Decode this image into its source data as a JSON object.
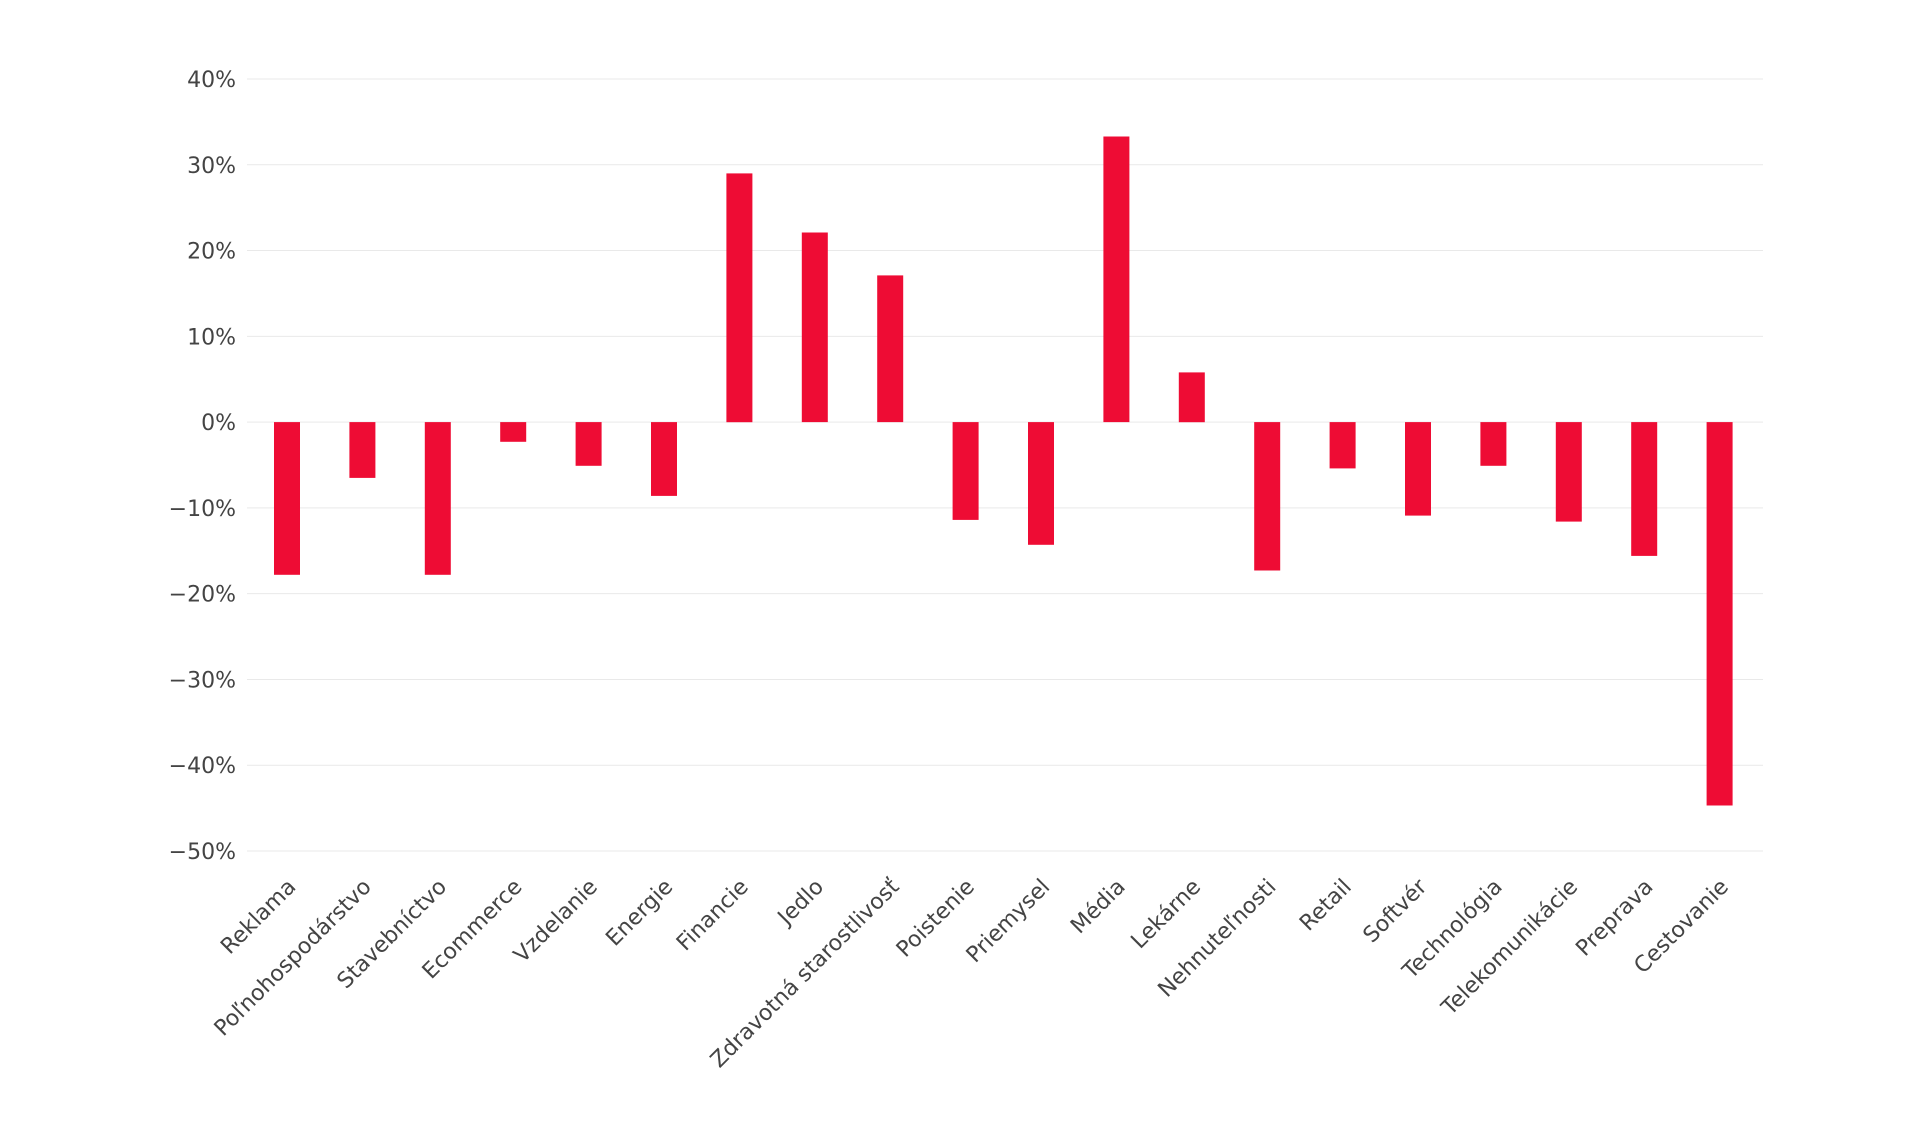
{
  "chart_data": {
    "type": "bar",
    "title": "",
    "xlabel": "",
    "ylabel": "",
    "ylim": [
      -50,
      40
    ],
    "yticks": [
      40,
      30,
      20,
      10,
      0,
      -10,
      -20,
      -30,
      -40,
      -50
    ],
    "ytick_labels": [
      "40%",
      "30%",
      "20%",
      "10%",
      "0%",
      "−10%",
      "−20%",
      "−30%",
      "−40%",
      "−50%"
    ],
    "grid": true,
    "bar_color": "#ee0c34",
    "categories": [
      "Reklama",
      "Poľnohospodárstvo",
      "Stavebníctvo",
      "Ecommerce",
      "Vzdelanie",
      "Energie",
      "Financie",
      "Jedlo",
      "Zdravotná starostlivosť",
      "Poistenie",
      "Priemysel",
      "Média",
      "Lekárne",
      "Nehnuteľnosti",
      "Retail",
      "Softvér",
      "Technológia",
      "Telekomunikácie",
      "Preprava",
      "Cestovanie"
    ],
    "values": [
      -17.8,
      -6.5,
      -17.8,
      -2.3,
      -5.1,
      -8.6,
      29.0,
      22.1,
      17.1,
      -11.4,
      -14.3,
      33.3,
      5.8,
      -17.3,
      -5.4,
      -10.9,
      -5.1,
      -11.6,
      -15.6,
      -44.7
    ]
  }
}
